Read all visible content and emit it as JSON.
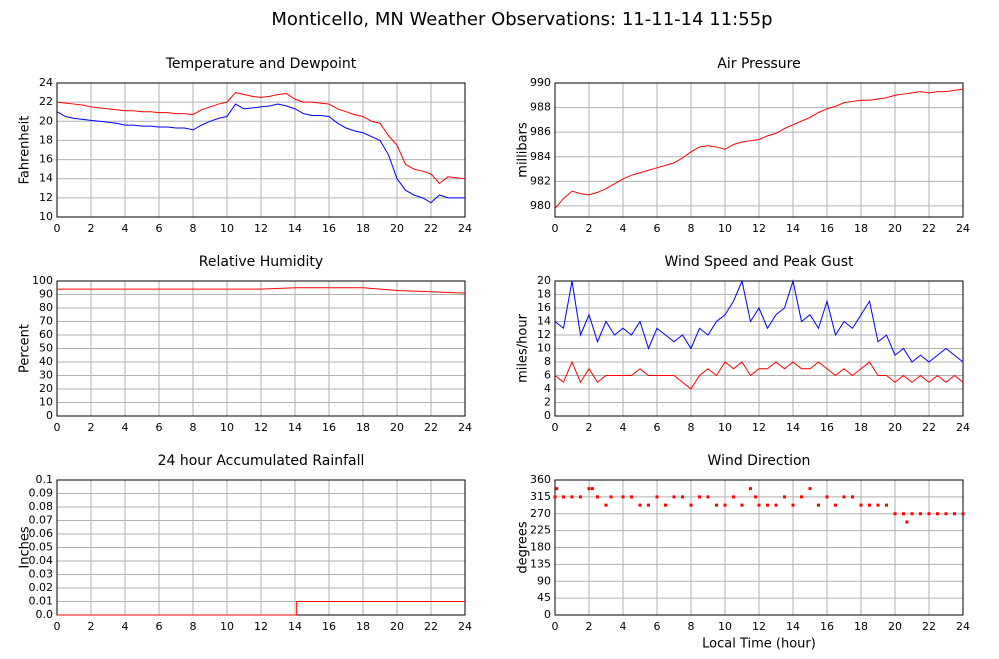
{
  "title": "Monticello, MN Weather Observations: 11-11-14 11:55p",
  "chart_data": [
    {
      "type": "line",
      "title": "Temperature and Dewpoint",
      "ylabel": "Fahrenheit",
      "x": [
        0,
        0.5,
        1,
        1.5,
        2,
        2.5,
        3,
        3.5,
        4,
        4.5,
        5,
        5.5,
        6,
        6.5,
        7,
        7.5,
        8,
        8.5,
        9,
        9.5,
        10,
        10.5,
        11,
        11.5,
        12,
        12.5,
        13,
        13.5,
        14,
        14.5,
        15,
        15.5,
        16,
        16.5,
        17,
        17.5,
        18,
        18.5,
        19,
        19.5,
        20,
        20.5,
        21,
        21.5,
        22,
        22.5,
        23,
        23.5,
        24
      ],
      "series": [
        {
          "color": "#ff0000",
          "values": [
            22,
            21.9,
            21.8,
            21.7,
            21.5,
            21.4,
            21.3,
            21.2,
            21.1,
            21.1,
            21.0,
            21.0,
            20.9,
            20.9,
            20.8,
            20.8,
            20.7,
            21.2,
            21.5,
            21.8,
            22.0,
            23.0,
            22.8,
            22.6,
            22.5,
            22.6,
            22.8,
            22.9,
            22.3,
            22.0,
            22.0,
            21.9,
            21.8,
            21.3,
            21.0,
            20.7,
            20.5,
            20.0,
            19.8,
            18.5,
            17.5,
            15.5,
            15.0,
            14.8,
            14.5,
            13.5,
            14.2,
            14.1,
            14.0
          ]
        },
        {
          "color": "#0000ff",
          "values": [
            21.0,
            20.5,
            20.3,
            20.2,
            20.1,
            20.0,
            19.9,
            19.8,
            19.6,
            19.6,
            19.5,
            19.5,
            19.4,
            19.4,
            19.3,
            19.3,
            19.1,
            19.6,
            20.0,
            20.3,
            20.5,
            21.8,
            21.3,
            21.4,
            21.5,
            21.6,
            21.8,
            21.6,
            21.3,
            20.8,
            20.6,
            20.6,
            20.5,
            19.8,
            19.3,
            19.0,
            18.8,
            18.4,
            18.0,
            16.5,
            14.0,
            12.8,
            12.3,
            12.0,
            11.5,
            12.3,
            12.0,
            12.0,
            12.0
          ]
        }
      ],
      "xlim": [
        0,
        24
      ],
      "xticks": [
        0,
        2,
        4,
        6,
        8,
        10,
        12,
        14,
        16,
        18,
        20,
        22,
        24
      ],
      "ylim": [
        10,
        24
      ],
      "yticks": [
        10,
        12,
        14,
        16,
        18,
        20,
        22,
        24
      ],
      "grid": true
    },
    {
      "type": "line",
      "title": "Air Pressure",
      "ylabel": "millibars",
      "x": [
        0,
        0.5,
        1,
        1.5,
        2,
        2.5,
        3,
        3.5,
        4,
        4.5,
        5,
        5.5,
        6,
        6.5,
        7,
        7.5,
        8,
        8.5,
        9,
        9.5,
        10,
        10.5,
        11,
        11.5,
        12,
        12.5,
        13,
        13.5,
        14,
        14.5,
        15,
        15.5,
        16,
        16.5,
        17,
        17.5,
        18,
        18.5,
        19,
        19.5,
        20,
        20.5,
        21,
        21.5,
        22,
        22.5,
        23,
        23.5,
        24
      ],
      "series": [
        {
          "color": "#ff0000",
          "values": [
            979.8,
            980.6,
            981.2,
            981.0,
            980.9,
            981.1,
            981.4,
            981.8,
            982.2,
            982.5,
            982.7,
            982.9,
            983.1,
            983.3,
            983.5,
            983.9,
            984.4,
            984.8,
            984.9,
            984.8,
            984.6,
            985.0,
            985.2,
            985.3,
            985.4,
            985.7,
            985.9,
            986.3,
            986.6,
            986.9,
            987.2,
            987.6,
            987.9,
            988.1,
            988.4,
            988.5,
            988.6,
            988.6,
            988.7,
            988.8,
            989.0,
            989.1,
            989.2,
            989.3,
            989.2,
            989.3,
            989.3,
            989.4,
            989.5
          ]
        }
      ],
      "xlim": [
        0,
        24
      ],
      "xticks": [
        0,
        2,
        4,
        6,
        8,
        10,
        12,
        14,
        16,
        18,
        20,
        22,
        24
      ],
      "ylim": [
        979.1,
        990
      ],
      "yticks": [
        980,
        982,
        984,
        986,
        988,
        990
      ],
      "grid": true
    },
    {
      "type": "line",
      "title": "Relative Humidity",
      "ylabel": "Percent",
      "x": [
        0,
        2,
        4,
        6,
        8,
        10,
        12,
        14,
        16,
        18,
        20,
        22,
        24
      ],
      "series": [
        {
          "color": "#ff0000",
          "values": [
            94,
            94,
            94,
            94,
            94,
            94,
            94,
            95,
            95,
            95,
            93,
            92,
            91
          ]
        }
      ],
      "xlim": [
        0,
        24
      ],
      "xticks": [
        0,
        2,
        4,
        6,
        8,
        10,
        12,
        14,
        16,
        18,
        20,
        22,
        24
      ],
      "ylim": [
        0,
        100
      ],
      "yticks": [
        0,
        10,
        20,
        30,
        40,
        50,
        60,
        70,
        80,
        90,
        100
      ],
      "grid": true
    },
    {
      "type": "line",
      "title": "Wind Speed and Peak Gust",
      "ylabel": "miles/hour",
      "x": [
        0,
        0.5,
        1,
        1.5,
        2,
        2.5,
        3,
        3.5,
        4,
        4.5,
        5,
        5.5,
        6,
        6.5,
        7,
        7.5,
        8,
        8.5,
        9,
        9.5,
        10,
        10.5,
        11,
        11.5,
        12,
        12.5,
        13,
        13.5,
        14,
        14.5,
        15,
        15.5,
        16,
        16.5,
        17,
        17.5,
        18,
        18.5,
        19,
        19.5,
        20,
        20.5,
        21,
        21.5,
        22,
        22.5,
        23,
        23.5,
        24
      ],
      "series": [
        {
          "color": "#0000ff",
          "values": [
            14,
            13,
            20,
            12,
            15,
            11,
            14,
            12,
            13,
            12,
            14,
            10,
            13,
            12,
            11,
            12,
            10,
            13,
            12,
            14,
            15,
            17,
            20,
            14,
            16,
            13,
            15,
            16,
            20,
            14,
            15,
            13,
            17,
            12,
            14,
            13,
            15,
            17,
            11,
            12,
            9,
            10,
            8,
            9,
            8,
            9,
            10,
            9,
            8
          ]
        },
        {
          "color": "#ff0000",
          "values": [
            6,
            5,
            8,
            5,
            7,
            5,
            6,
            6,
            6,
            6,
            7,
            6,
            6,
            6,
            6,
            5,
            4,
            6,
            7,
            6,
            8,
            7,
            8,
            6,
            7,
            7,
            8,
            7,
            8,
            7,
            7,
            8,
            7,
            6,
            7,
            6,
            7,
            8,
            6,
            6,
            5,
            6,
            5,
            6,
            5,
            6,
            5,
            6,
            5
          ]
        }
      ],
      "xlim": [
        0,
        24
      ],
      "xticks": [
        0,
        2,
        4,
        6,
        8,
        10,
        12,
        14,
        16,
        18,
        20,
        22,
        24
      ],
      "ylim": [
        0,
        20
      ],
      "yticks": [
        0,
        2,
        4,
        6,
        8,
        10,
        12,
        14,
        16,
        18,
        20
      ],
      "grid": true
    },
    {
      "type": "line",
      "title": "24 hour Accumulated Rainfall",
      "ylabel": "Inches",
      "x": [
        0,
        14.1,
        14.1,
        24
      ],
      "series": [
        {
          "color": "#ff0000",
          "values": [
            0,
            0,
            0.01,
            0.01
          ]
        }
      ],
      "xlim": [
        0,
        24
      ],
      "xticks": [
        0,
        2,
        4,
        6,
        8,
        10,
        12,
        14,
        16,
        18,
        20,
        22,
        24
      ],
      "ylim": [
        0,
        0.1
      ],
      "yticks": [
        {
          "value": 0,
          "label": "0.0"
        },
        0.01,
        0.02,
        0.03,
        0.04,
        0.05,
        0.06,
        0.07,
        0.08,
        0.09,
        0.1
      ],
      "grid": true
    },
    {
      "type": "scatter",
      "title": "Wind Direction",
      "ylabel": "degrees",
      "xlabel": "Local Time (hour)",
      "x": [
        0,
        0.1,
        0.5,
        1,
        1.5,
        2,
        2.2,
        2.5,
        3,
        3.3,
        4,
        4.5,
        5,
        5.5,
        6,
        6.5,
        7,
        7.5,
        8,
        8.5,
        9,
        9.5,
        10,
        10.5,
        11,
        11.5,
        11.8,
        12,
        12.5,
        13,
        13.5,
        14,
        14.5,
        15,
        15.5,
        16,
        16.5,
        17,
        17.5,
        18,
        18.5,
        19,
        19.5,
        20,
        20.5,
        20.7,
        21,
        21.5,
        22,
        22.5,
        23,
        23.5,
        24
      ],
      "series": [
        {
          "color": "#ff0000",
          "values": [
            315,
            337,
            315,
            315,
            315,
            337,
            337,
            315,
            293,
            315,
            315,
            315,
            293,
            293,
            315,
            293,
            315,
            315,
            293,
            315,
            315,
            293,
            293,
            315,
            293,
            337,
            315,
            293,
            293,
            293,
            315,
            293,
            315,
            337,
            293,
            315,
            293,
            315,
            315,
            293,
            293,
            293,
            293,
            270,
            270,
            248,
            270,
            270,
            270,
            270,
            270,
            270,
            270
          ]
        }
      ],
      "xlim": [
        0,
        24
      ],
      "xticks": [
        0,
        2,
        4,
        6,
        8,
        10,
        12,
        14,
        16,
        18,
        20,
        22,
        24
      ],
      "ylim": [
        0,
        360
      ],
      "yticks": [
        0,
        45,
        90,
        135,
        180,
        225,
        270,
        315,
        360
      ],
      "grid": true
    }
  ]
}
